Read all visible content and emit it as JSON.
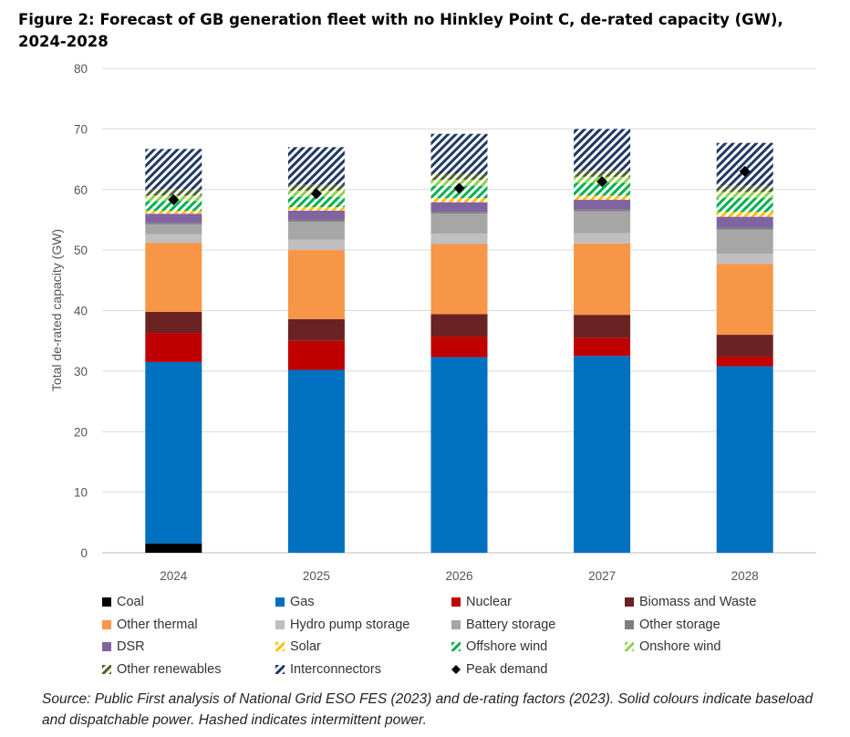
{
  "title_line1": "Figure 2: Forecast of GB generation fleet with no Hinkley Point C, de-rated capacity (GW),",
  "title_line2": "2024-2028",
  "source_note": "Source: Public First analysis of National Grid ESO FES (2023) and de-rating factors (2023). Solid colours indicate baseload and dispatchable power. Hashed indicates intermittent power.",
  "chart_data": {
    "type": "bar",
    "stacked": true,
    "ylabel": "Total de-rated capacity (GW)",
    "ylim": [
      0,
      80
    ],
    "yticks": [
      0,
      10,
      20,
      30,
      40,
      50,
      60,
      70,
      80
    ],
    "grid": true,
    "legend_position": "bottom",
    "categories": [
      "2024",
      "2025",
      "2026",
      "2027",
      "2028"
    ],
    "series": [
      {
        "name": "Coal",
        "color": "#000000",
        "pattern": "solid",
        "values": [
          1.5,
          0,
          0,
          0,
          0
        ]
      },
      {
        "name": "Gas",
        "color": "#0070c0",
        "pattern": "solid",
        "values": [
          30.0,
          30.2,
          32.3,
          32.5,
          30.8
        ]
      },
      {
        "name": "Nuclear",
        "color": "#c00000",
        "pattern": "solid",
        "values": [
          4.8,
          4.8,
          3.4,
          3.0,
          1.6
        ]
      },
      {
        "name": "Biomass and Waste",
        "color": "#6b2222",
        "pattern": "solid",
        "values": [
          3.5,
          3.6,
          3.7,
          3.8,
          3.6
        ]
      },
      {
        "name": "Other thermal",
        "color": "#f79646",
        "pattern": "solid",
        "values": [
          11.4,
          11.4,
          11.6,
          11.8,
          11.7
        ]
      },
      {
        "name": "Hydro pump storage",
        "color": "#bfbfbf",
        "pattern": "solid",
        "values": [
          1.4,
          1.7,
          1.7,
          1.7,
          1.7
        ]
      },
      {
        "name": "Battery storage",
        "color": "#a6a6a6",
        "pattern": "solid",
        "values": [
          1.6,
          3.0,
          3.3,
          3.6,
          4.0
        ]
      },
      {
        "name": "Other storage",
        "color": "#7f7f7f",
        "pattern": "solid",
        "values": [
          0.3,
          0.3,
          0.3,
          0.3,
          0.3
        ]
      },
      {
        "name": "DSR",
        "color": "#8064a2",
        "pattern": "solid",
        "values": [
          1.5,
          1.5,
          1.6,
          1.6,
          1.8
        ]
      },
      {
        "name": "Solar",
        "color": "#ffc000",
        "pattern": "hatch",
        "values": [
          0.5,
          0.6,
          0.7,
          0.7,
          0.8
        ]
      },
      {
        "name": "Offshore wind",
        "color": "#00b050",
        "pattern": "hatch",
        "values": [
          1.6,
          1.7,
          2.0,
          2.1,
          2.3
        ]
      },
      {
        "name": "Onshore wind",
        "color": "#92d050",
        "pattern": "hatch",
        "values": [
          0.9,
          1.0,
          1.0,
          1.0,
          1.0
        ]
      },
      {
        "name": "Other renewables",
        "color": "#4f6228",
        "pattern": "hatch",
        "values": [
          1.0,
          1.0,
          1.0,
          1.0,
          1.0
        ]
      },
      {
        "name": "Interconnectors",
        "color": "#1f3864",
        "pattern": "hatch",
        "values": [
          6.7,
          6.2,
          6.6,
          6.9,
          7.1
        ]
      }
    ],
    "markers": [
      {
        "name": "Peak demand",
        "color": "#000000",
        "shape": "diamond",
        "values": [
          58.3,
          59.3,
          60.2,
          61.3,
          63.0
        ]
      }
    ]
  }
}
